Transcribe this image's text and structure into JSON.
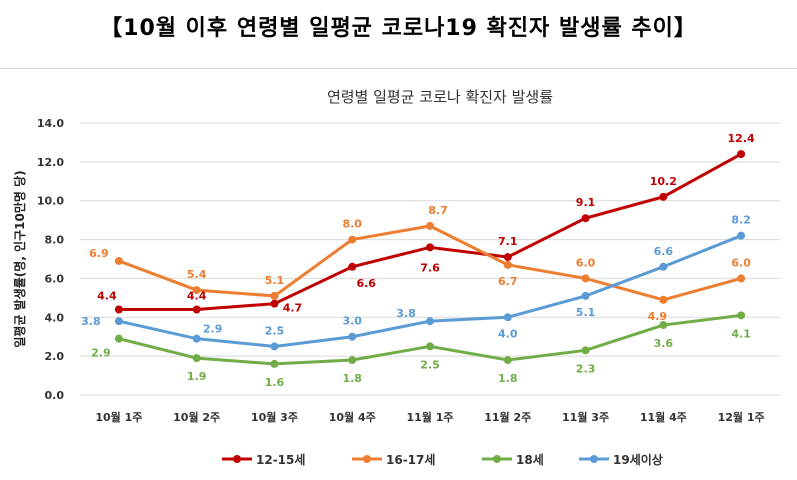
{
  "header": {
    "title": "【10월 이후 연령별 일평균 코로나19 확진자 발생률 추이】"
  },
  "chart_data": {
    "type": "line",
    "title": "연령별 일평균 코로나 확진자 발생률",
    "ylabel": "일평균 발생률(명, 인구10만명 당)",
    "xlabel": "",
    "ylim": [
      0,
      14
    ],
    "yticks": [
      "0.0",
      "2.0",
      "4.0",
      "6.0",
      "8.0",
      "10.0",
      "12.0",
      "14.0"
    ],
    "grid": true,
    "legend": "bottom",
    "categories": [
      "10월 1주",
      "10월 2주",
      "10월 3주",
      "10월 4주",
      "11월 1주",
      "11월 2주",
      "11월 3주",
      "11월 4주",
      "12월 1주"
    ],
    "series": [
      {
        "name": "12-15세",
        "color": "#C00000",
        "values": [
          4.4,
          4.4,
          4.7,
          6.6,
          7.6,
          7.1,
          9.1,
          10.2,
          12.4
        ]
      },
      {
        "name": "16-17세",
        "color": "#ED7D31",
        "values": [
          6.9,
          5.4,
          5.1,
          8.0,
          8.7,
          6.7,
          6.0,
          4.9,
          6.0
        ]
      },
      {
        "name": "18세",
        "color": "#70AD47",
        "values": [
          2.9,
          1.9,
          1.6,
          1.8,
          2.5,
          1.8,
          2.3,
          3.6,
          4.1
        ]
      },
      {
        "name": "19세이상",
        "color": "#5B9BD5",
        "values": [
          3.8,
          2.9,
          2.5,
          3.0,
          3.8,
          4.0,
          5.1,
          6.6,
          8.2
        ]
      }
    ]
  }
}
